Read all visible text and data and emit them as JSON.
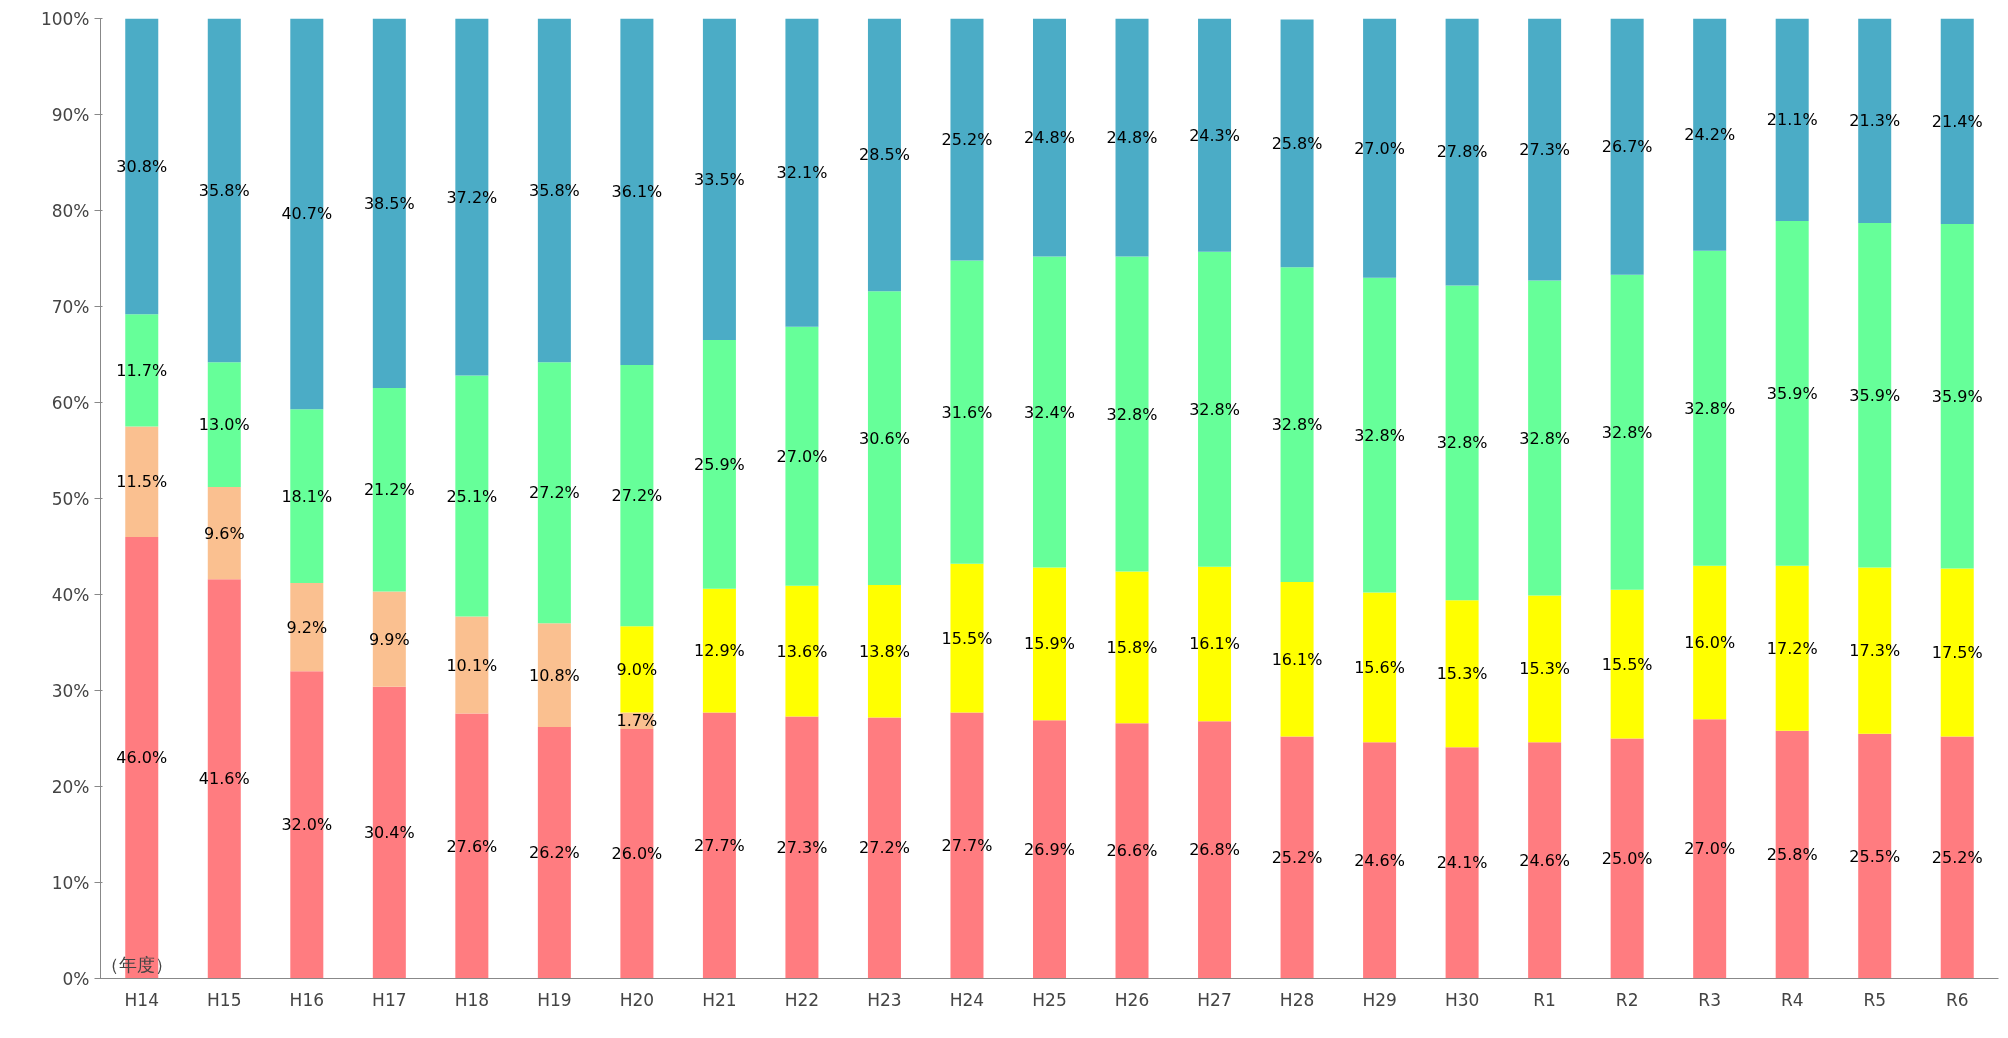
{
  "chart_data": {
    "type": "bar",
    "stacked": true,
    "xlabel": "（年度）",
    "categories": [
      "H14",
      "H15",
      "H16",
      "H17",
      "H18",
      "H19",
      "H20",
      "H21",
      "H22",
      "H23",
      "H24",
      "H25",
      "H26",
      "H27",
      "H28",
      "H29",
      "H30",
      "R1",
      "R2",
      "R3",
      "R4",
      "R5",
      "R6"
    ],
    "series": [
      {
        "color": "#ff7c80",
        "values": [
          46.0,
          41.6,
          32.0,
          30.4,
          27.6,
          26.2,
          26.0,
          27.7,
          27.3,
          27.2,
          27.7,
          26.9,
          26.6,
          26.8,
          25.2,
          24.6,
          24.1,
          24.6,
          25.0,
          27.0,
          25.8,
          25.5,
          25.2
        ],
        "value_labels": [
          "46.0%",
          "41.6%",
          "32.0%",
          "30.4%",
          "27.6%",
          "26.2%",
          "26.0%",
          "27.7%",
          "27.3%",
          "27.2%",
          "27.7%",
          "26.9%",
          "26.6%",
          "26.8%",
          "25.2%",
          "24.6%",
          "24.1%",
          "24.6%",
          "25.0%",
          "27.0%",
          "25.8%",
          "25.5%",
          "25.2%"
        ]
      },
      {
        "color": "#fac090",
        "values": [
          11.5,
          9.6,
          9.2,
          9.9,
          10.1,
          10.8,
          1.7,
          null,
          null,
          null,
          null,
          null,
          null,
          null,
          null,
          null,
          null,
          null,
          null,
          null,
          null,
          null,
          null
        ],
        "value_labels": [
          "11.5%",
          "9.6%",
          "9.2%",
          "9.9%",
          "10.1%",
          "10.8%",
          "1.7%",
          null,
          null,
          null,
          null,
          null,
          null,
          null,
          null,
          null,
          null,
          null,
          null,
          null,
          null,
          null,
          null
        ]
      },
      {
        "color": "#ffff00",
        "values": [
          null,
          null,
          null,
          null,
          null,
          null,
          9.0,
          12.9,
          13.6,
          13.8,
          15.5,
          15.9,
          15.8,
          16.1,
          16.1,
          15.6,
          15.3,
          15.3,
          15.5,
          16.0,
          17.2,
          17.3,
          17.5
        ],
        "value_labels": [
          null,
          null,
          null,
          null,
          null,
          null,
          "9.0%",
          "12.9%",
          "13.6%",
          "13.8%",
          "15.5%",
          "15.9%",
          "15.8%",
          "16.1%",
          "16.1%",
          "15.6%",
          "15.3%",
          "15.3%",
          "15.5%",
          "16.0%",
          "17.2%",
          "17.3%",
          "17.5%"
        ]
      },
      {
        "color": "#66ff99",
        "values": [
          11.7,
          13.0,
          18.1,
          21.2,
          25.1,
          27.2,
          27.2,
          25.9,
          27.0,
          30.6,
          31.6,
          32.4,
          32.8,
          32.8,
          32.8,
          32.8,
          32.8,
          32.8,
          32.8,
          32.8,
          35.9,
          35.9,
          35.9
        ],
        "value_labels": [
          "11.7%",
          "13.0%",
          "18.1%",
          "21.2%",
          "25.1%",
          "27.2%",
          "27.2%",
          "25.9%",
          "27.0%",
          "30.6%",
          "31.6%",
          "32.4%",
          "32.8%",
          "32.8%",
          "32.8%",
          "32.8%",
          "32.8%",
          "32.8%",
          "32.8%",
          "32.8%",
          "35.9%",
          "35.9%",
          "35.9%"
        ]
      },
      {
        "color": "#4bacc6",
        "values": [
          30.8,
          35.8,
          40.7,
          38.5,
          37.2,
          35.8,
          36.1,
          33.5,
          32.1,
          28.5,
          25.2,
          24.8,
          24.8,
          24.3,
          25.8,
          27.0,
          27.8,
          27.3,
          26.7,
          24.2,
          21.1,
          21.3,
          21.4
        ],
        "value_labels": [
          "30.8%",
          "35.8%",
          "40.7%",
          "38.5%",
          "37.2%",
          "35.8%",
          "36.1%",
          "33.5%",
          "32.1%",
          "28.5%",
          "25.2%",
          "24.8%",
          "24.8%",
          "24.3%",
          "25.8%",
          "27.0%",
          "27.8%",
          "27.3%",
          "26.7%",
          "24.2%",
          "21.1%",
          "21.3%",
          "21.4%"
        ]
      }
    ],
    "ylim": [
      0,
      100
    ],
    "yticks": [
      {
        "value": 0,
        "label": "0%"
      },
      {
        "value": 10,
        "label": "10%"
      },
      {
        "value": 20,
        "label": "20%"
      },
      {
        "value": 30,
        "label": "30%"
      },
      {
        "value": 40,
        "label": "40%"
      },
      {
        "value": 50,
        "label": "50%"
      },
      {
        "value": 60,
        "label": "60%"
      },
      {
        "value": 70,
        "label": "70%"
      },
      {
        "value": 80,
        "label": "80%"
      },
      {
        "value": 90,
        "label": "90%"
      },
      {
        "value": 100,
        "label": "100%"
      }
    ]
  }
}
